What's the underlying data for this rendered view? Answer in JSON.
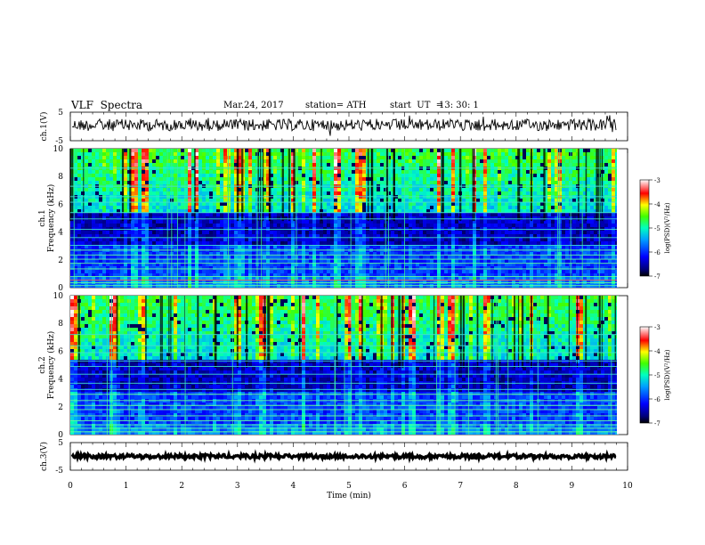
{
  "header": {
    "title": "VLF  Spectra",
    "date": "Mar.24, 2017",
    "station": "station= ATH",
    "start_label": "start  UT  =",
    "start_time": "13: 30: 1"
  },
  "chart_data": [
    {
      "type": "line",
      "panel": "ch1-waveform",
      "ylabel": "ch.1(V)",
      "ylim": [
        -5,
        5
      ],
      "yticks": [
        "5",
        "-5"
      ],
      "xlim": [
        0,
        10
      ],
      "trace_level": 0.5,
      "trace_noise": 0.35,
      "data_end_min": 9.8
    },
    {
      "type": "heatmap",
      "panel": "ch1-spectrogram",
      "ylabel": "ch.1\nFrequency  (kHz)",
      "ylabel_line1": "ch.1",
      "ylabel_line2": "Frequency  (kHz)",
      "ylim": [
        0,
        10
      ],
      "yticks": [
        "0",
        "2",
        "4",
        "6",
        "8",
        "10"
      ],
      "xlim": [
        0,
        10
      ],
      "colorbar": {
        "label": "log(PSD)(V²/Hz)",
        "range": [
          -7,
          -3
        ],
        "ticks": [
          "-3",
          "-4",
          "-5",
          "-6",
          "-7"
        ]
      },
      "lines_khz": [
        0.15,
        0.35,
        0.55,
        0.8,
        1.35,
        1.75,
        2.05,
        2.35,
        2.7,
        3.05,
        3.6,
        4.2,
        4.95,
        5.4,
        6.15,
        6.55,
        7.3,
        8.6
      ]
    },
    {
      "type": "heatmap",
      "panel": "ch2-spectrogram",
      "ylabel": "ch.2\nFrequency  (kHz)",
      "ylabel_line1": "ch.2",
      "ylabel_line2": "Frequency  (kHz)",
      "ylim": [
        0,
        10
      ],
      "yticks": [
        "0",
        "2",
        "4",
        "6",
        "8",
        "10"
      ],
      "xlim": [
        0,
        10
      ],
      "colorbar": {
        "label": "log(PSD)(V²/Hz)",
        "range": [
          -7,
          -3
        ],
        "ticks": [
          "-3",
          "-4",
          "-5",
          "-6",
          "-7"
        ]
      },
      "lines_khz": [
        0.2,
        0.45,
        0.7,
        1.0,
        1.35,
        1.8,
        2.1,
        2.45,
        2.9,
        3.25,
        3.7,
        4.35,
        4.9,
        5.3,
        5.9,
        6.4,
        7.2
      ]
    },
    {
      "type": "line",
      "panel": "ch3-waveform",
      "ylabel": "ch.3(V)",
      "ylim": [
        -5,
        5
      ],
      "yticks": [
        "5",
        "-5"
      ],
      "xlim": [
        0,
        10
      ],
      "trace_level": 0.0,
      "trace_noise": 0.12,
      "data_end_min": 9.8,
      "xlabel": "Time  (min)",
      "xticks": [
        "0",
        "1",
        "2",
        "3",
        "4",
        "5",
        "6",
        "7",
        "8",
        "9",
        "10"
      ]
    }
  ]
}
